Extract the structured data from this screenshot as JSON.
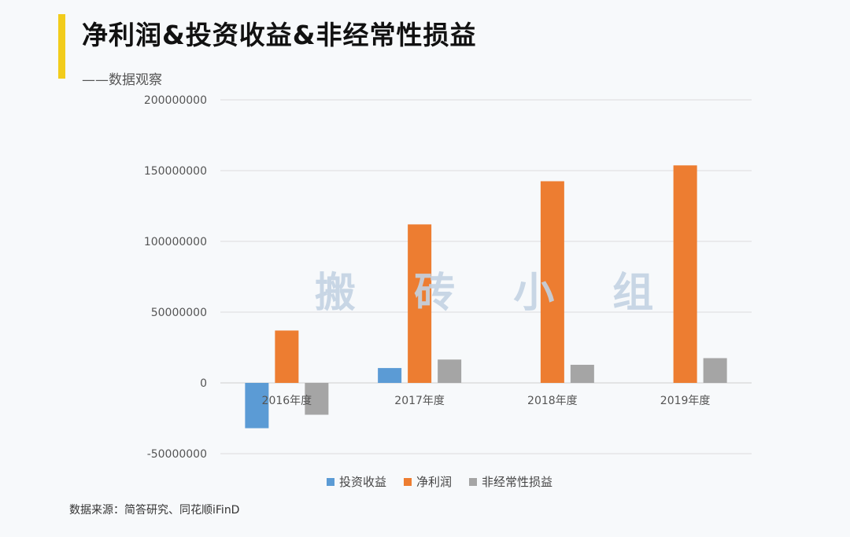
{
  "header": {
    "title": "净利润&投资收益&非经常性损益",
    "subtitle": "——数据观察"
  },
  "watermark": "搬 砖 小 组",
  "source": "数据来源：简答研究、同花顺iFinD",
  "chart_data": {
    "type": "bar",
    "categories": [
      "2016年度",
      "2017年度",
      "2018年度",
      "2019年度"
    ],
    "series": [
      {
        "name": "投资收益",
        "color": "#5b9bd5",
        "values": [
          -32000000,
          10500000,
          0,
          0
        ]
      },
      {
        "name": "净利润",
        "color": "#ed7d31",
        "values": [
          37000000,
          112000000,
          142500000,
          153700000
        ]
      },
      {
        "name": "非经常性损益",
        "color": "#a5a5a5",
        "values": [
          -22500000,
          16500000,
          12800000,
          17500000
        ]
      }
    ],
    "ylim": [
      -50000000,
      200000000
    ],
    "yticks": [
      -50000000,
      0,
      50000000,
      100000000,
      150000000,
      200000000
    ],
    "ytick_labels": [
      "-50000000",
      "0",
      "50000000",
      "100000000",
      "150000000",
      "200000000"
    ],
    "grid": true,
    "legend": "bottom-center"
  }
}
